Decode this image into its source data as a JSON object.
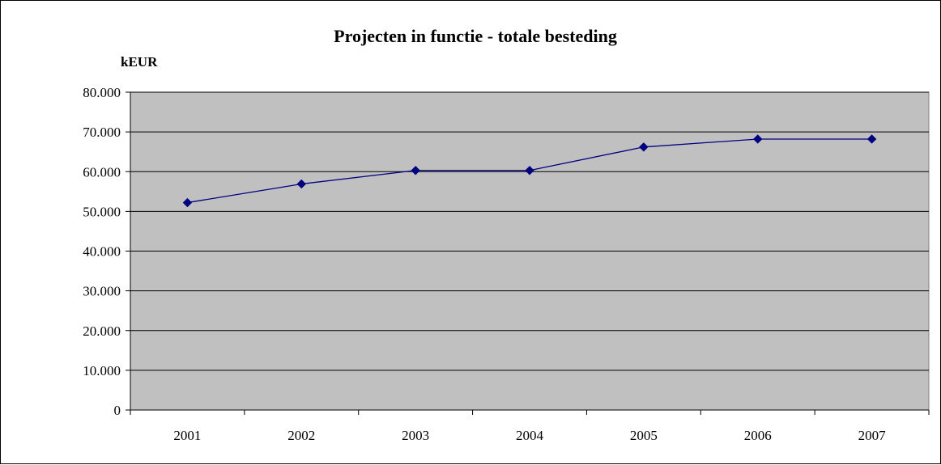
{
  "chart_data": {
    "type": "line",
    "title": "Projecten in functie - totale besteding",
    "ylabel": "kEUR",
    "xlabel": "",
    "categories": [
      "2001",
      "2002",
      "2003",
      "2004",
      "2005",
      "2006",
      "2007"
    ],
    "series": [
      {
        "values": [
          52200,
          56900,
          60300,
          60300,
          66200,
          68200,
          68200
        ],
        "color": "#000080"
      }
    ],
    "ylim": [
      0,
      80000
    ],
    "ytick_step": 10000,
    "ytick_labels": [
      "0",
      "10.000",
      "20.000",
      "30.000",
      "40.000",
      "50.000",
      "60.000",
      "70.000",
      "80.000"
    ],
    "grid": true,
    "legend": "none",
    "plot_background": "#c0c0c0"
  }
}
